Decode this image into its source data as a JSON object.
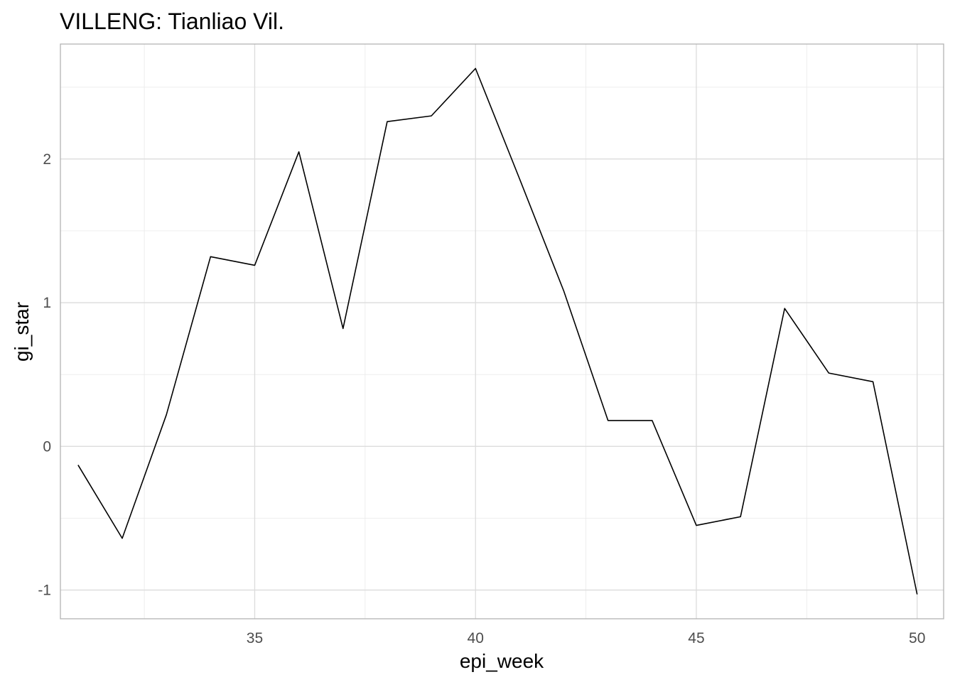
{
  "chart_data": {
    "type": "line",
    "title": "VILLENG: Tianliao Vil.",
    "xlabel": "epi_week",
    "ylabel": "gi_star",
    "xlim": [
      30.6,
      50.6
    ],
    "ylim": [
      -1.2,
      2.8
    ],
    "x_ticks": [
      35,
      40,
      45,
      50
    ],
    "x_tick_labels": [
      "35",
      "40",
      "45",
      "50"
    ],
    "y_ticks": [
      -1,
      0,
      1,
      2
    ],
    "y_tick_labels": [
      "-1",
      "0",
      "1",
      "2"
    ],
    "grid": true,
    "x": [
      31,
      32,
      33,
      34,
      35,
      36,
      37,
      38,
      39,
      40,
      41,
      42,
      43,
      44,
      45,
      46,
      47,
      48,
      49,
      50
    ],
    "series": [
      {
        "values": [
          -0.13,
          -0.64,
          0.22,
          1.32,
          1.26,
          2.05,
          0.82,
          2.26,
          2.3,
          2.63,
          1.86,
          1.08,
          0.18,
          0.18,
          -0.55,
          -0.49,
          0.96,
          0.51,
          0.45,
          -1.03
        ],
        "color": "#000000"
      }
    ]
  }
}
